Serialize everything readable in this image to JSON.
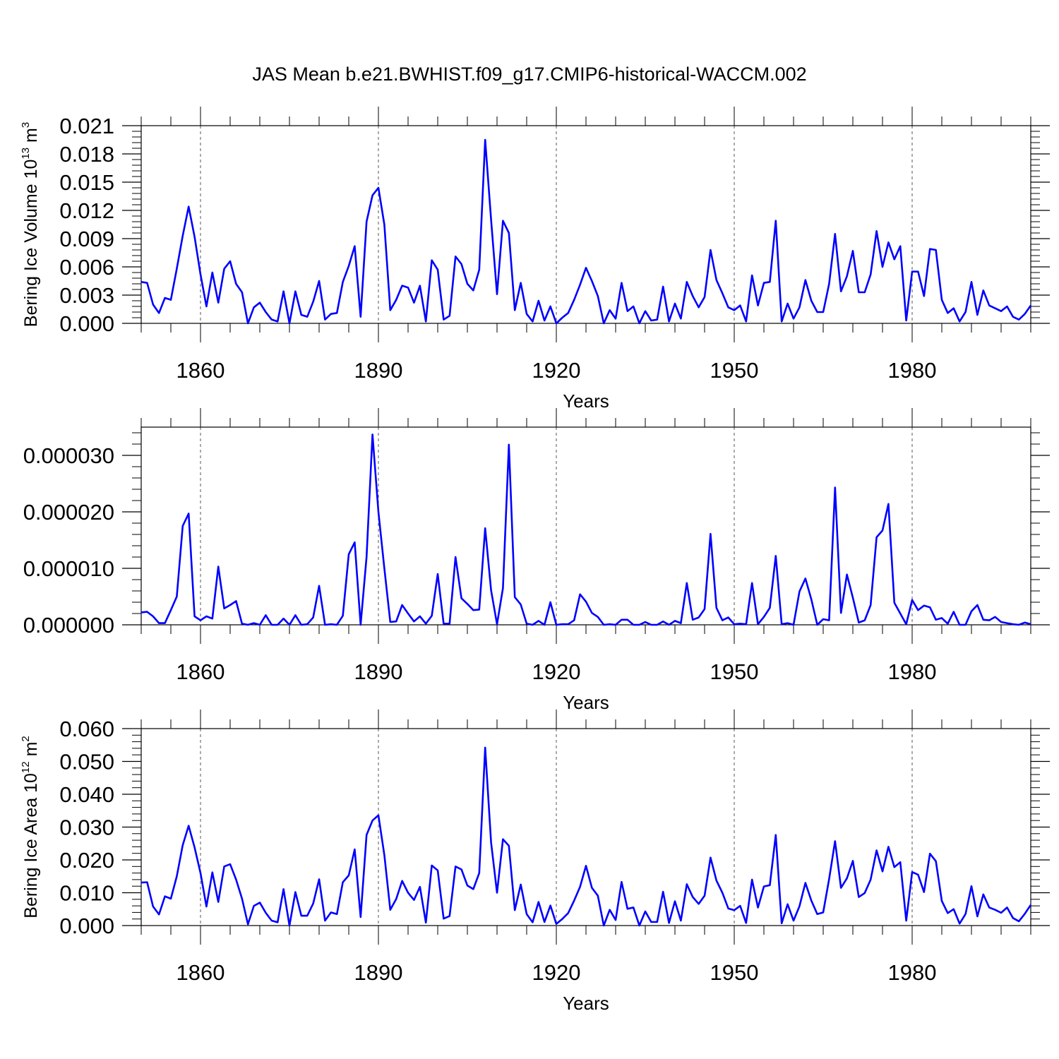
{
  "chart_data": {
    "title": "JAS Mean b.e21.BWHIST.f09_g17.CMIP6-historical-WACCM.002",
    "start_year": 1850,
    "end_year": 2000,
    "line_color": "#0000ff",
    "panels": [
      {
        "type": "line",
        "ylabel_main": "Bering Ice Volume 10",
        "ylabel_exp": "13",
        "ylabel_unit": " m",
        "ylabel_unit_exp": "3",
        "xlabel": "Years",
        "ylim": [
          0,
          0.021
        ],
        "yticks": [
          0.0,
          0.003,
          0.006,
          0.009,
          0.012,
          0.015,
          0.018,
          0.021
        ],
        "ytick_labels": [
          "0.000",
          "0.003",
          "0.006",
          "0.009",
          "0.012",
          "0.015",
          "0.018",
          "0.021"
        ],
        "xticks": [
          1860,
          1890,
          1920,
          1950,
          1980
        ],
        "xtick_labels": [
          "1860",
          "1890",
          "1920",
          "1950",
          "1980"
        ],
        "values": [
          0.0044,
          0.0043,
          0.002,
          0.0011,
          0.0027,
          0.0025,
          0.0058,
          0.0093,
          0.0124,
          0.0092,
          0.0052,
          0.0018,
          0.0054,
          0.0022,
          0.0058,
          0.0066,
          0.0042,
          0.0033,
          0.0,
          0.0017,
          0.0022,
          0.0012,
          0.0004,
          0.0002,
          0.0034,
          0.0,
          0.0034,
          0.0009,
          0.0007,
          0.0023,
          0.0045,
          0.0004,
          0.001,
          0.0011,
          0.0044,
          0.0061,
          0.0082,
          0.0007,
          0.0108,
          0.0136,
          0.0144,
          0.0105,
          0.0014,
          0.0025,
          0.004,
          0.0038,
          0.0022,
          0.004,
          0.0002,
          0.0067,
          0.0057,
          0.0004,
          0.0008,
          0.0071,
          0.0063,
          0.0042,
          0.0035,
          0.0057,
          0.0195,
          0.011,
          0.0031,
          0.0109,
          0.0096,
          0.0014,
          0.0043,
          0.001,
          0.0002,
          0.0024,
          0.0003,
          0.0018,
          0.0,
          0.0006,
          0.0011,
          0.0025,
          0.0041,
          0.0059,
          0.0045,
          0.0029,
          0.0,
          0.0014,
          0.0005,
          0.0043,
          0.0013,
          0.0018,
          0.0,
          0.0013,
          0.0003,
          0.0004,
          0.0039,
          0.0002,
          0.0021,
          0.0005,
          0.0044,
          0.0029,
          0.0017,
          0.0028,
          0.0078,
          0.0046,
          0.0032,
          0.0017,
          0.0014,
          0.0019,
          0.0002,
          0.0051,
          0.0019,
          0.0043,
          0.0044,
          0.0109,
          0.0002,
          0.0021,
          0.0005,
          0.0017,
          0.0046,
          0.0024,
          0.0012,
          0.0012,
          0.0042,
          0.0095,
          0.0034,
          0.005,
          0.0077,
          0.0033,
          0.0033,
          0.0052,
          0.0098,
          0.006,
          0.0086,
          0.0068,
          0.0082,
          0.0003,
          0.0055,
          0.0055,
          0.0029,
          0.0079,
          0.0078,
          0.0025,
          0.0011,
          0.0016,
          0.0002,
          0.0012,
          0.0044,
          0.0009,
          0.0035,
          0.0019,
          0.0016,
          0.0013,
          0.0018,
          0.0007,
          0.0004,
          0.001,
          0.0019
        ]
      },
      {
        "type": "line",
        "ylabel_main": "",
        "ylabel_exp": "",
        "ylabel_unit": "",
        "ylabel_unit_exp": "",
        "xlabel": "Years",
        "ylim": [
          0,
          3.5e-05
        ],
        "yticks": [
          0.0,
          1e-05,
          2e-05,
          3e-05
        ],
        "ytick_labels": [
          "0.000000",
          "0.000010",
          "0.000020",
          "0.000030"
        ],
        "xticks": [
          1860,
          1890,
          1920,
          1950,
          1980
        ],
        "xtick_labels": [
          "1860",
          "1890",
          "1920",
          "1950",
          "1980"
        ],
        "values": [
          2.2e-06,
          2.3e-06,
          1.5e-06,
          3e-07,
          3e-07,
          2.6e-06,
          5e-06,
          1.75e-05,
          1.97e-05,
          1.5e-06,
          8e-07,
          1.5e-06,
          1.1e-06,
          1.03e-05,
          2.9e-06,
          3.5e-06,
          4.2e-06,
          2e-07,
          0.0,
          3e-07,
          0.0,
          1.7e-06,
          0.0,
          0.0,
          1.1e-06,
          0.0,
          1.7e-06,
          0.0,
          1e-07,
          1.3e-06,
          6.9e-06,
          0.0,
          1e-07,
          0.0,
          1.6e-06,
          1.25e-05,
          1.46e-05,
          0.0,
          1.2e-05,
          3.37e-05,
          2e-05,
          1e-05,
          5e-07,
          6e-07,
          3.5e-06,
          2e-06,
          6e-07,
          1.5e-06,
          2e-07,
          1.6e-06,
          9e-06,
          2e-07,
          2e-07,
          1.2e-05,
          4.7e-06,
          3.7e-06,
          2.6e-06,
          2.7e-06,
          1.71e-05,
          6.1e-06,
          1e-07,
          6.5e-06,
          3.19e-05,
          4.9e-06,
          3.6e-06,
          2e-07,
          0.0,
          7e-07,
          0.0,
          4e-06,
          0.0,
          1e-07,
          1e-07,
          8e-07,
          5.4e-06,
          4.1e-06,
          2.1e-06,
          1.4e-06,
          0.0,
          1e-07,
          0.0,
          9e-07,
          9e-07,
          0.0,
          0.0,
          5e-07,
          0.0,
          0.0,
          6e-07,
          0.0,
          7e-07,
          3e-07,
          7.4e-06,
          9e-07,
          1.3e-06,
          2.8e-06,
          1.61e-05,
          3e-06,
          8e-07,
          1.3e-06,
          1e-07,
          2e-07,
          1e-07,
          7.4e-06,
          1e-07,
          1.4e-06,
          3e-06,
          1.22e-05,
          1e-07,
          3e-07,
          0.0,
          5.9e-06,
          8.2e-06,
          4.5e-06,
          0.0,
          1e-06,
          8e-07,
          2.43e-05,
          2.1e-06,
          8.9e-06,
          4.8e-06,
          4e-07,
          8e-07,
          3.5e-06,
          1.55e-05,
          1.67e-05,
          2.14e-05,
          3.9e-06,
          2e-06,
          1e-07,
          4.4e-06,
          2.6e-06,
          3.4e-06,
          3.1e-06,
          9e-07,
          1.2e-06,
          2e-07,
          2.3e-06,
          0.0,
          0.0,
          2.4e-06,
          3.5e-06,
          9e-07,
          8e-07,
          1.4e-06,
          5e-07,
          3e-07,
          1e-07,
          0.0,
          4e-07,
          1e-07
        ]
      },
      {
        "type": "line",
        "ylabel_main": "Bering Ice Area 10",
        "ylabel_exp": "12",
        "ylabel_unit": " m",
        "ylabel_unit_exp": "2",
        "xlabel": "Years",
        "ylim": [
          0,
          0.06
        ],
        "yticks": [
          0.0,
          0.01,
          0.02,
          0.03,
          0.04,
          0.05,
          0.06
        ],
        "ytick_labels": [
          "0.000",
          "0.010",
          "0.020",
          "0.030",
          "0.040",
          "0.050",
          "0.060"
        ],
        "xticks": [
          1860,
          1890,
          1920,
          1950,
          1980
        ],
        "xtick_labels": [
          "1860",
          "1890",
          "1920",
          "1950",
          "1980"
        ],
        "values": [
          0.0131,
          0.0132,
          0.0058,
          0.0034,
          0.0089,
          0.0082,
          0.015,
          0.0245,
          0.0304,
          0.0238,
          0.016,
          0.0058,
          0.0162,
          0.0072,
          0.018,
          0.0187,
          0.014,
          0.0082,
          0.0004,
          0.006,
          0.007,
          0.0039,
          0.0015,
          0.001,
          0.0111,
          0.0,
          0.0102,
          0.003,
          0.003,
          0.0067,
          0.0141,
          0.0015,
          0.004,
          0.0035,
          0.0132,
          0.0153,
          0.0232,
          0.0026,
          0.0276,
          0.032,
          0.0336,
          0.0215,
          0.0048,
          0.0081,
          0.0136,
          0.01,
          0.0078,
          0.0118,
          0.0009,
          0.0183,
          0.0168,
          0.0021,
          0.0029,
          0.018,
          0.0171,
          0.0122,
          0.0111,
          0.016,
          0.0542,
          0.0253,
          0.01,
          0.0263,
          0.0243,
          0.0047,
          0.0125,
          0.0035,
          0.001,
          0.0072,
          0.0011,
          0.0061,
          0.0005,
          0.002,
          0.0038,
          0.0076,
          0.0118,
          0.0182,
          0.0115,
          0.0091,
          0.0,
          0.0048,
          0.0017,
          0.0133,
          0.0051,
          0.0055,
          0.0,
          0.0043,
          0.0011,
          0.0011,
          0.0103,
          0.0008,
          0.0074,
          0.0015,
          0.0126,
          0.0087,
          0.0066,
          0.0091,
          0.0207,
          0.0137,
          0.01,
          0.0052,
          0.0047,
          0.006,
          0.0008,
          0.014,
          0.0055,
          0.0119,
          0.0123,
          0.0276,
          0.0007,
          0.0065,
          0.0015,
          0.0059,
          0.013,
          0.0076,
          0.0035,
          0.004,
          0.0142,
          0.0257,
          0.0115,
          0.0144,
          0.0197,
          0.0087,
          0.0099,
          0.014,
          0.0229,
          0.0165,
          0.024,
          0.0178,
          0.0193,
          0.0015,
          0.0163,
          0.0155,
          0.0102,
          0.0219,
          0.0196,
          0.0075,
          0.0038,
          0.005,
          0.0006,
          0.0035,
          0.012,
          0.0028,
          0.0095,
          0.0055,
          0.0048,
          0.0039,
          0.0055,
          0.0023,
          0.0013,
          0.0036,
          0.0063
        ]
      }
    ]
  }
}
